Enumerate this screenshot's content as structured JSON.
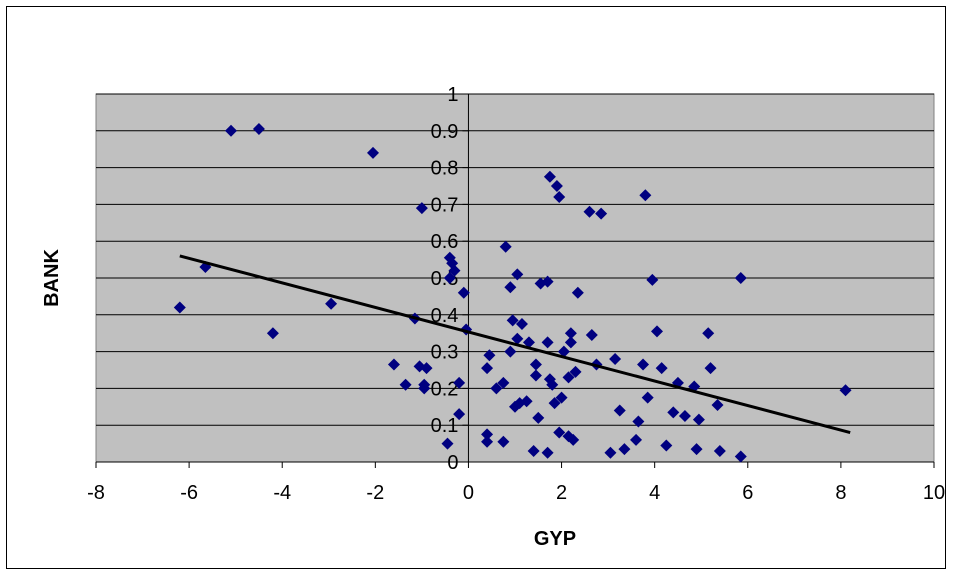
{
  "chart_data": {
    "type": "scatter",
    "title": "",
    "xlabel": "GYP",
    "ylabel": "BANK",
    "xlim": [
      -8,
      10
    ],
    "ylim": [
      0,
      1
    ],
    "x_ticks": [
      "-8",
      "-6",
      "-4",
      "-2",
      "0",
      "2",
      "4",
      "6",
      "8",
      "10"
    ],
    "y_ticks": [
      "0",
      "0.1",
      "0.2",
      "0.3",
      "0.4",
      "0.5",
      "0.6",
      "0.7",
      "0.8",
      "0.9",
      "1"
    ],
    "grid": "horizontal",
    "legend": "none",
    "plot_background": "#C0C0C0",
    "marker": "diamond",
    "marker_color": "#000080",
    "trendline": {
      "type": "linear",
      "color": "#000000",
      "from": [
        -6.2,
        0.56
      ],
      "to": [
        8.2,
        0.08
      ]
    },
    "points": [
      [
        -6.2,
        0.42
      ],
      [
        -5.65,
        0.53
      ],
      [
        -5.1,
        0.9
      ],
      [
        -4.5,
        0.905
      ],
      [
        -4.2,
        0.35
      ],
      [
        -2.95,
        0.43
      ],
      [
        -2.05,
        0.84
      ],
      [
        -1.6,
        0.265
      ],
      [
        -1.35,
        0.21
      ],
      [
        -1.15,
        0.39
      ],
      [
        -1.05,
        0.26
      ],
      [
        -1.0,
        0.69
      ],
      [
        -0.95,
        0.21
      ],
      [
        -0.9,
        0.255
      ],
      [
        -0.95,
        0.2
      ],
      [
        -0.45,
        0.05
      ],
      [
        -0.4,
        0.5
      ],
      [
        -0.35,
        0.54
      ],
      [
        -0.3,
        0.52
      ],
      [
        -0.4,
        0.555
      ],
      [
        -0.2,
        0.13
      ],
      [
        -0.2,
        0.215
      ],
      [
        -0.1,
        0.46
      ],
      [
        -0.05,
        0.36
      ],
      [
        0.4,
        0.255
      ],
      [
        0.4,
        0.075
      ],
      [
        0.4,
        0.055
      ],
      [
        0.45,
        0.29
      ],
      [
        0.6,
        0.2
      ],
      [
        0.75,
        0.215
      ],
      [
        0.75,
        0.055
      ],
      [
        0.8,
        0.585
      ],
      [
        0.9,
        0.475
      ],
      [
        0.9,
        0.3
      ],
      [
        0.95,
        0.385
      ],
      [
        1.0,
        0.15
      ],
      [
        1.05,
        0.51
      ],
      [
        1.05,
        0.335
      ],
      [
        1.1,
        0.16
      ],
      [
        1.15,
        0.375
      ],
      [
        1.25,
        0.165
      ],
      [
        1.3,
        0.325
      ],
      [
        1.4,
        0.03
      ],
      [
        1.45,
        0.235
      ],
      [
        1.5,
        0.12
      ],
      [
        1.45,
        0.265
      ],
      [
        1.55,
        0.485
      ],
      [
        1.7,
        0.49
      ],
      [
        1.75,
        0.775
      ],
      [
        1.7,
        0.325
      ],
      [
        1.75,
        0.225
      ],
      [
        1.8,
        0.21
      ],
      [
        1.85,
        0.16
      ],
      [
        1.7,
        0.025
      ],
      [
        1.9,
        0.75
      ],
      [
        1.95,
        0.72
      ],
      [
        1.95,
        0.08
      ],
      [
        2.0,
        0.175
      ],
      [
        2.05,
        0.3
      ],
      [
        2.15,
        0.07
      ],
      [
        2.15,
        0.23
      ],
      [
        2.2,
        0.35
      ],
      [
        2.2,
        0.325
      ],
      [
        2.25,
        0.06
      ],
      [
        2.3,
        0.245
      ],
      [
        2.35,
        0.46
      ],
      [
        2.6,
        0.68
      ],
      [
        2.65,
        0.345
      ],
      [
        2.75,
        0.265
      ],
      [
        2.85,
        0.675
      ],
      [
        3.05,
        0.025
      ],
      [
        3.15,
        0.28
      ],
      [
        3.25,
        0.14
      ],
      [
        3.35,
        0.035
      ],
      [
        3.6,
        0.06
      ],
      [
        3.65,
        0.11
      ],
      [
        3.75,
        0.265
      ],
      [
        3.8,
        0.725
      ],
      [
        3.85,
        0.175
      ],
      [
        3.95,
        0.495
      ],
      [
        4.05,
        0.355
      ],
      [
        4.15,
        0.255
      ],
      [
        4.25,
        0.045
      ],
      [
        4.4,
        0.135
      ],
      [
        4.5,
        0.215
      ],
      [
        4.65,
        0.125
      ],
      [
        4.85,
        0.205
      ],
      [
        4.9,
        0.035
      ],
      [
        4.95,
        0.115
      ],
      [
        5.15,
        0.35
      ],
      [
        5.2,
        0.255
      ],
      [
        5.35,
        0.155
      ],
      [
        5.4,
        0.03
      ],
      [
        5.85,
        0.015
      ],
      [
        5.85,
        0.5
      ],
      [
        8.1,
        0.195
      ]
    ]
  }
}
